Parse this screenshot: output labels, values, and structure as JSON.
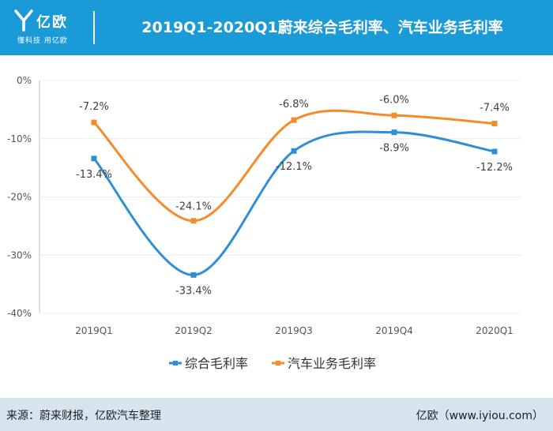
{
  "header": {
    "logo_name": "亿欧",
    "logo_slogan": "懂科技 用亿欧",
    "title": "2019Q1-2020Q1蔚来综合毛利率、汽车业务毛利率"
  },
  "footer": {
    "source": "来源：蔚来财报，亿欧汽车整理",
    "site": "亿欧（www.iyiou.com）"
  },
  "colors": {
    "header_bg": "#1a9bd7",
    "series1": "#2e8fd6",
    "series2": "#f58b2b",
    "footer_bg": "#d6e4f0"
  },
  "chart_data": {
    "type": "line",
    "title": "2019Q1-2020Q1蔚来综合毛利率、汽车业务毛利率",
    "categories": [
      "2019Q1",
      "2019Q2",
      "2019Q3",
      "2019Q4",
      "2020Q1"
    ],
    "ylim": [
      -40,
      0
    ],
    "yticks": [
      0,
      -10,
      -20,
      -30,
      -40
    ],
    "ytick_labels": [
      "0%",
      "-10%",
      "-20%",
      "-30%",
      "-40%"
    ],
    "legend_position": "bottom",
    "series": [
      {
        "name": "综合毛利率",
        "color": "#2e8fd6",
        "values": [
          -13.4,
          -33.4,
          -12.1,
          -8.9,
          -12.2
        ],
        "labels": [
          "-13.4%",
          "-33.4%",
          "-12.1%",
          "-8.9%",
          "-12.2%"
        ]
      },
      {
        "name": "汽车业务毛利率",
        "color": "#f58b2b",
        "values": [
          -7.2,
          -24.1,
          -6.8,
          -6.0,
          -7.4
        ],
        "labels": [
          "-7.2%",
          "-24.1%",
          "-6.8%",
          "-6.0%",
          "-7.4%"
        ]
      }
    ]
  }
}
